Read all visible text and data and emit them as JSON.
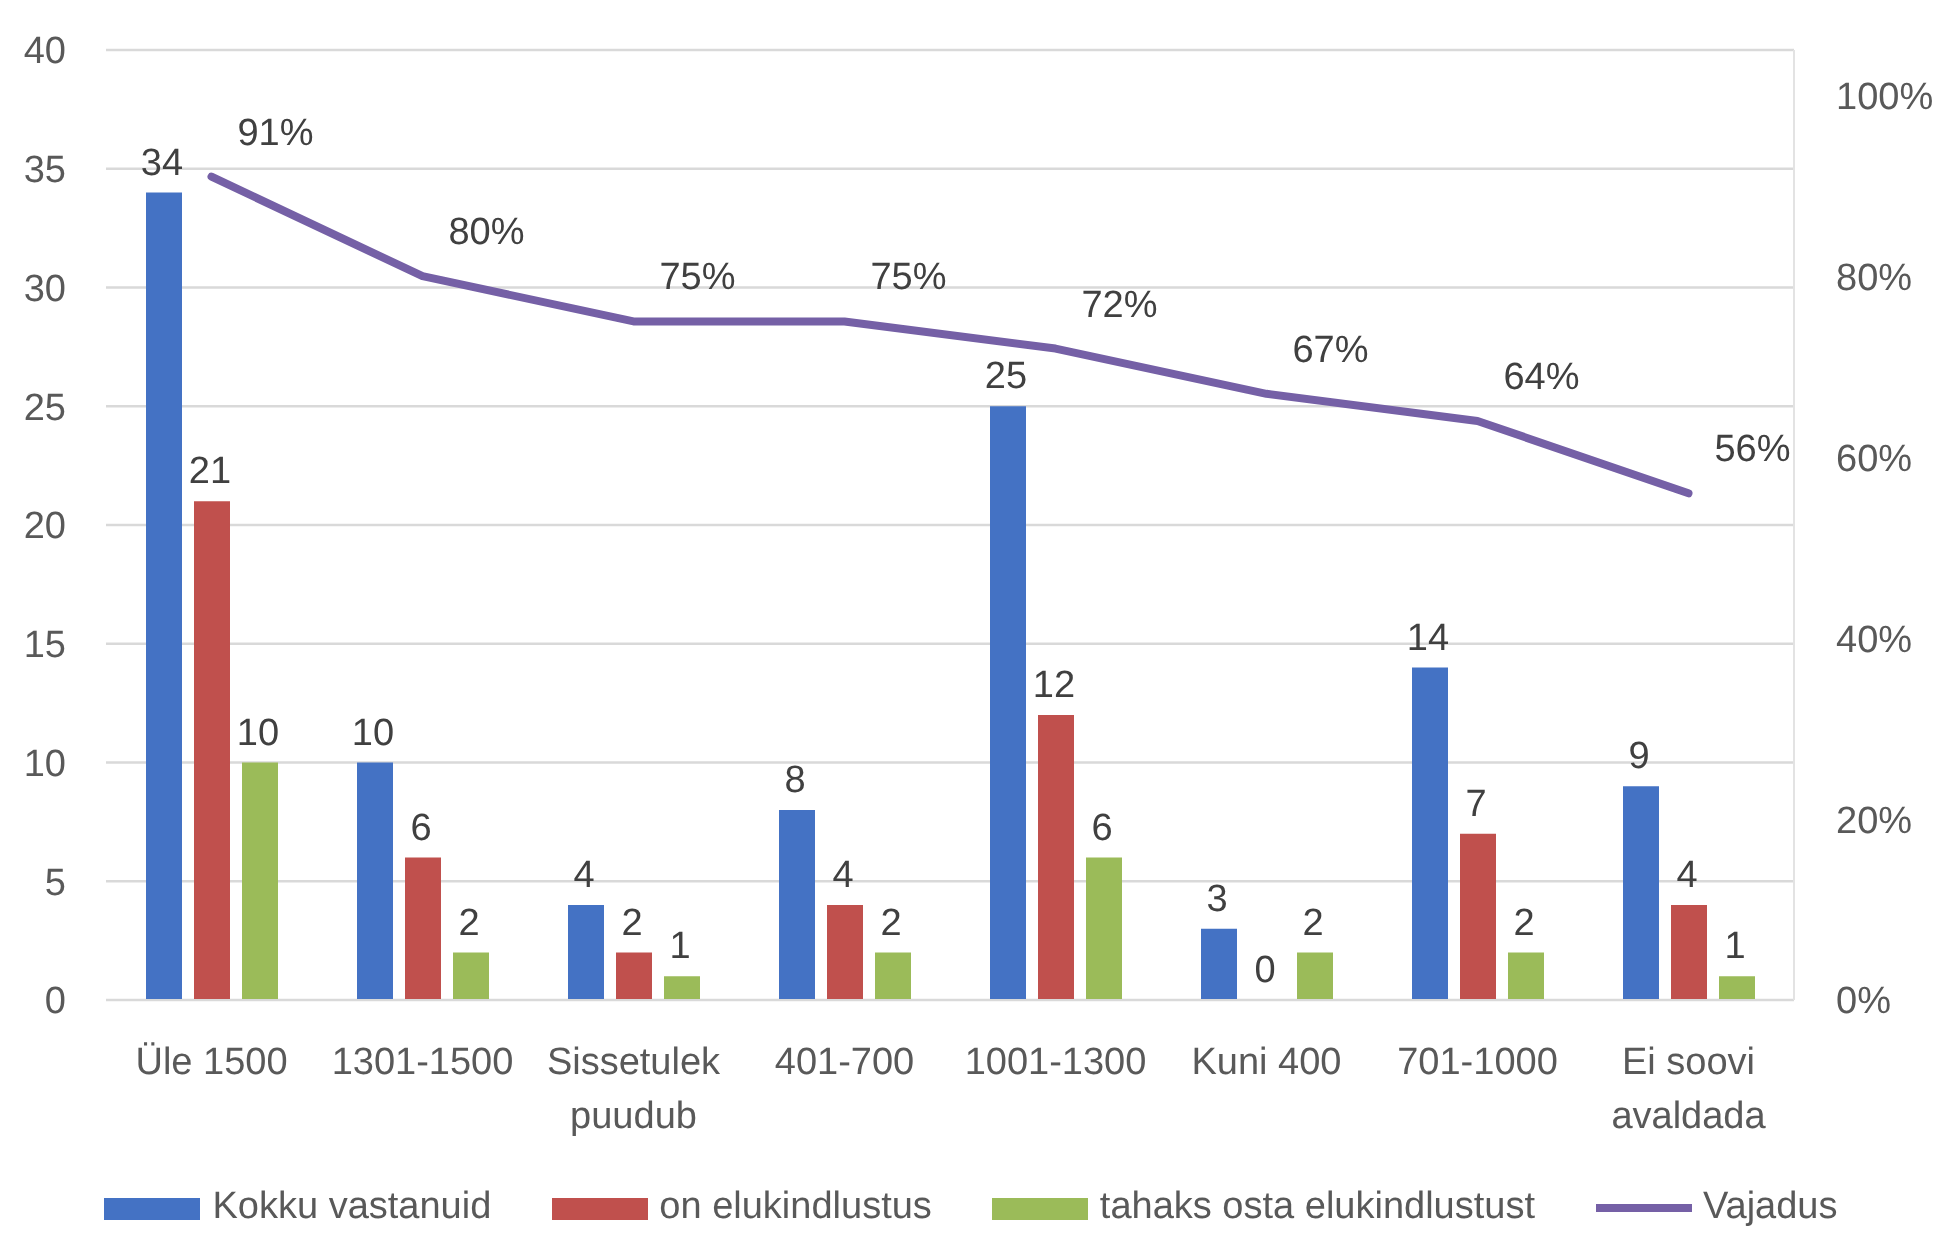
{
  "chart_data": {
    "type": "bar",
    "categories": [
      "Üle 1500",
      "1301-1500",
      "Sissetulek puudub",
      "401-700",
      "1001-1300",
      "Kuni 400",
      "701-1000",
      "Ei soovi avaldada"
    ],
    "series": [
      {
        "name": "Kokku vastanuid",
        "color": "#4472c4",
        "values": [
          34,
          10,
          4,
          8,
          25,
          3,
          14,
          9
        ],
        "value_labels": [
          "34",
          "10",
          "4",
          "8",
          "25",
          "3",
          "14",
          "9"
        ]
      },
      {
        "name": "on elukindlustus",
        "color": "#c0504d",
        "values": [
          21,
          6,
          2,
          4,
          12,
          0,
          7,
          4
        ],
        "value_labels": [
          "21",
          "6",
          "2",
          "4",
          "12",
          "0",
          "7",
          "4"
        ]
      },
      {
        "name": "tahaks osta elukindlustust",
        "color": "#9bbb59",
        "values": [
          10,
          2,
          1,
          2,
          6,
          2,
          2,
          1
        ],
        "value_labels": [
          "10",
          "2",
          "1",
          "2",
          "6",
          "2",
          "2",
          "1"
        ]
      },
      {
        "name": "Vajadus",
        "type": "line",
        "axis": "y2",
        "color": "#7560a6",
        "values": [
          91,
          80,
          75,
          75,
          72,
          67,
          64,
          56
        ],
        "value_labels": [
          "91%",
          "80%",
          "75%",
          "75%",
          "72%",
          "67%",
          "64%",
          "56%"
        ]
      }
    ],
    "ylim": [
      0,
      40
    ],
    "yticks": [
      0,
      5,
      10,
      15,
      20,
      25,
      30,
      35,
      40
    ],
    "y2lim": [
      0,
      105
    ],
    "y2ticks": [
      {
        "value": 0,
        "label": "0%"
      },
      {
        "value": 20,
        "label": "20%"
      },
      {
        "value": 40,
        "label": "40%"
      },
      {
        "value": 60,
        "label": "60%"
      },
      {
        "value": 80,
        "label": "80%"
      },
      {
        "value": 100,
        "label": "100%"
      }
    ],
    "grid": "y",
    "legend": "bottom",
    "marker": "none"
  }
}
